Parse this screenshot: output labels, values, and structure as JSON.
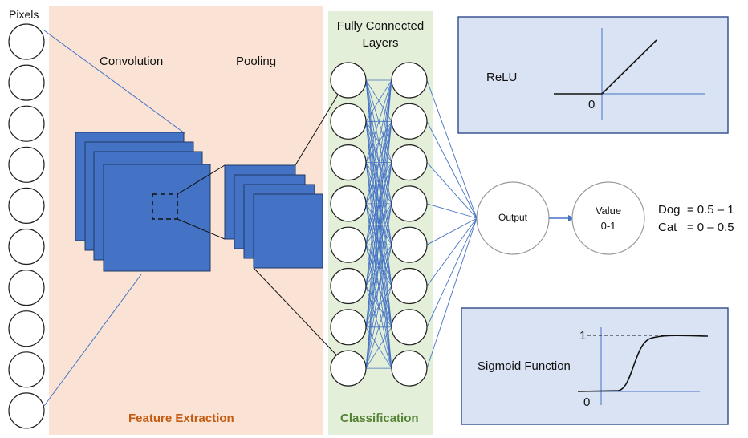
{
  "labels": {
    "pixels": "Pixels",
    "convolution": "Convolution",
    "pooling": "Pooling",
    "fully_connected": "Fully Connected Layers",
    "feature_extraction": "Feature Extraction",
    "classification": "Classification",
    "output": "Output",
    "value": "Value",
    "value_range": "0-1",
    "dog": "Dog  = 0.5 – 1",
    "cat": "Cat   = 0 – 0.5"
  },
  "relu": {
    "title": "ReLU",
    "origin_label": "0"
  },
  "sigmoid": {
    "title": "Sigmoid Function",
    "one_label": "1",
    "zero_label": "0"
  },
  "colors": {
    "feature_bg": "#fae3d5",
    "classification_bg": "#e3efd9",
    "feature_text": "#c55a11",
    "classification_text": "#548235",
    "map_fill": "#4472c4",
    "map_stroke": "#1f3864",
    "connection": "#4472c4",
    "panel_fill": "#dae3f3",
    "panel_stroke": "#2f4b8a",
    "node_stroke": "#222222"
  }
}
